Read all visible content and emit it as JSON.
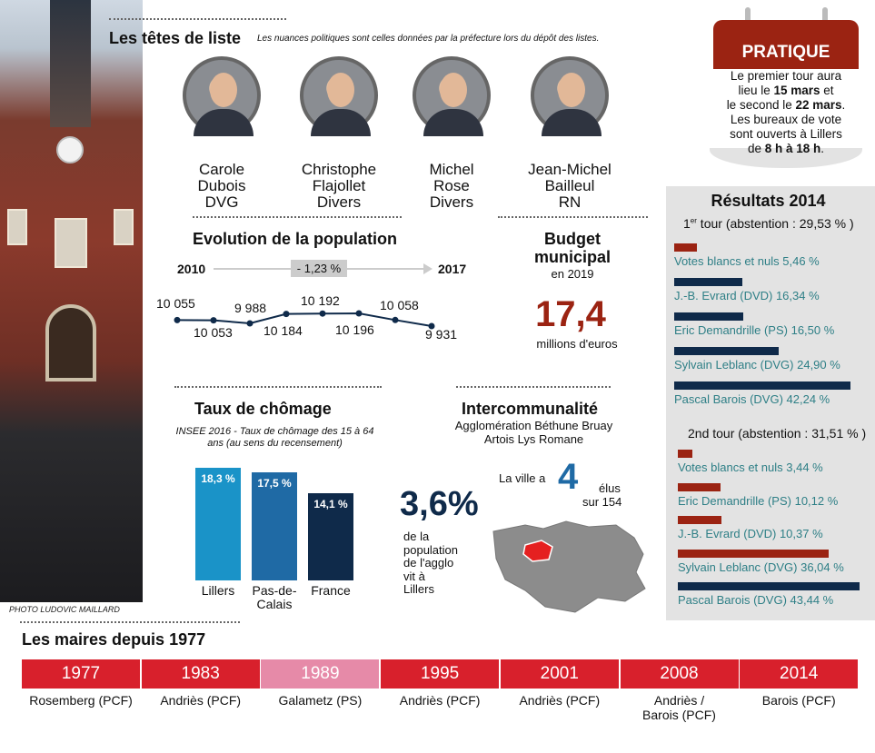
{
  "photo_credit": "PHOTO LUDOVIC MAILLARD",
  "candidates": {
    "title": "Les têtes de liste",
    "subtitle": "Les nuances politiques sont celles données par la préfecture lors du dépôt des listes.",
    "list": [
      {
        "first": "Carole",
        "last": "Dubois",
        "party": "DVG"
      },
      {
        "first": "Christophe",
        "last": "Flajollet",
        "party": "Divers"
      },
      {
        "first": "Michel",
        "last": "Rose",
        "party": "Divers"
      },
      {
        "first": "Jean-Michel",
        "last": "Bailleul",
        "party": "RN"
      }
    ]
  },
  "pratique": {
    "title": "PRATIQUE",
    "l1": "Le premier tour aura",
    "l2a": "lieu le ",
    "l2b": "15 mars",
    "l2c": " et",
    "l3a": "le second le ",
    "l3b": "22 mars",
    "l3c": ".",
    "l4": "Les bureaux de vote",
    "l5": "sont ouverts à Lillers",
    "l6a": "de ",
    "l6b": "8 h à 18 h",
    "l6c": "."
  },
  "population": {
    "title": "Evolution de la population",
    "start": "2010",
    "end": "2017",
    "change": "- 1,23 %",
    "values": [
      "10 055",
      "10 053",
      "9 988",
      "10 184",
      "10 192",
      "10 196",
      "10 058",
      "9 931"
    ],
    "series": [
      10055,
      10053,
      9988,
      10184,
      10192,
      10196,
      10058,
      9931
    ]
  },
  "budget": {
    "title1": "Budget",
    "title2": "municipal",
    "year": "en 2019",
    "value": "17,4",
    "unit": "millions d'euros"
  },
  "chomage": {
    "title": "Taux de chômage",
    "note": "INSEE 2016 - Taux de chômage des 15 à 64 ans (au sens du recensement)",
    "chart_data": {
      "type": "bar",
      "categories": [
        "Lillers",
        "Pas-de-Calais",
        "France"
      ],
      "values": [
        18.3,
        17.5,
        14.1
      ],
      "labels": [
        "18,3 %",
        "17,5 %",
        "14,1 %"
      ],
      "cat_line1": [
        "Lillers",
        "Pas-de-",
        "France"
      ],
      "cat_line2": [
        "",
        "Calais",
        ""
      ],
      "colors": [
        "#1a93c8",
        "#1f6aa5",
        "#0f2a4a"
      ]
    }
  },
  "interco": {
    "title": "Intercommunalité",
    "line1": "Agglomération Béthune Bruay",
    "line2": "Artois Lys Romane",
    "elus_pre": "La ville a",
    "elus_num": "4",
    "elus_post1": "élus",
    "elus_post2": "sur 154",
    "pct": "3,6%",
    "pct_l1": "de la",
    "pct_l2": "population",
    "pct_l3": "de l'agglo",
    "pct_l4": "vit à",
    "pct_l5": "Lillers"
  },
  "results": {
    "title": "Résultats 2014",
    "t1_a": "1",
    "t1_sup": "er",
    "t1_b": " tour (abstention : 29,53 % )",
    "t1": [
      {
        "label": "Votes blancs et nuls 5,46 %",
        "value": 5.46,
        "color": "#9b2312"
      },
      {
        "label": "J.-B. Evrard (DVD) 16,34 %",
        "value": 16.34,
        "color": "#0f2a4a"
      },
      {
        "label": "Eric Demandrille (PS) 16,50 %",
        "value": 16.5,
        "color": "#0f2a4a"
      },
      {
        "label": "Sylvain Leblanc (DVG) 24,90 %",
        "value": 24.9,
        "color": "#0f2a4a"
      },
      {
        "label": "Pascal Barois (DVG) 42,24 %",
        "value": 42.24,
        "color": "#0f2a4a"
      }
    ],
    "t2_title": "2nd tour (abstention : 31,51 % )",
    "t2": [
      {
        "label": "Votes blancs et nuls 3,44 %",
        "value": 3.44,
        "color": "#9b2312"
      },
      {
        "label": "Eric Demandrille (PS) 10,12 %",
        "value": 10.12,
        "color": "#9b2312"
      },
      {
        "label": "J.-B. Evrard (DVD) 10,37 %",
        "value": 10.37,
        "color": "#9b2312"
      },
      {
        "label": "Sylvain Leblanc (DVG) 36,04 %",
        "value": 36.04,
        "color": "#9b2312"
      },
      {
        "label": "Pascal Barois (DVG) 43,44 %",
        "value": 43.44,
        "color": "#0f2a4a"
      }
    ]
  },
  "maires": {
    "title": "Les maires depuis 1977",
    "list": [
      {
        "year": "1977",
        "n1": "Rosemberg (PCF)",
        "n2": "",
        "color": "#d8202c"
      },
      {
        "year": "1983",
        "n1": "Andriès (PCF)",
        "n2": "",
        "color": "#d8202c"
      },
      {
        "year": "1989",
        "n1": "Galametz (PS)",
        "n2": "",
        "color": "#e68aa8"
      },
      {
        "year": "1995",
        "n1": "Andriès (PCF)",
        "n2": "",
        "color": "#d8202c"
      },
      {
        "year": "2001",
        "n1": "Andriès (PCF)",
        "n2": "",
        "color": "#d8202c"
      },
      {
        "year": "2008",
        "n1": "Andriès /",
        "n2": "Barois (PCF)",
        "color": "#d8202c"
      },
      {
        "year": "2014",
        "n1": "Barois (PCF)",
        "n2": "",
        "color": "#d8202c"
      }
    ]
  }
}
